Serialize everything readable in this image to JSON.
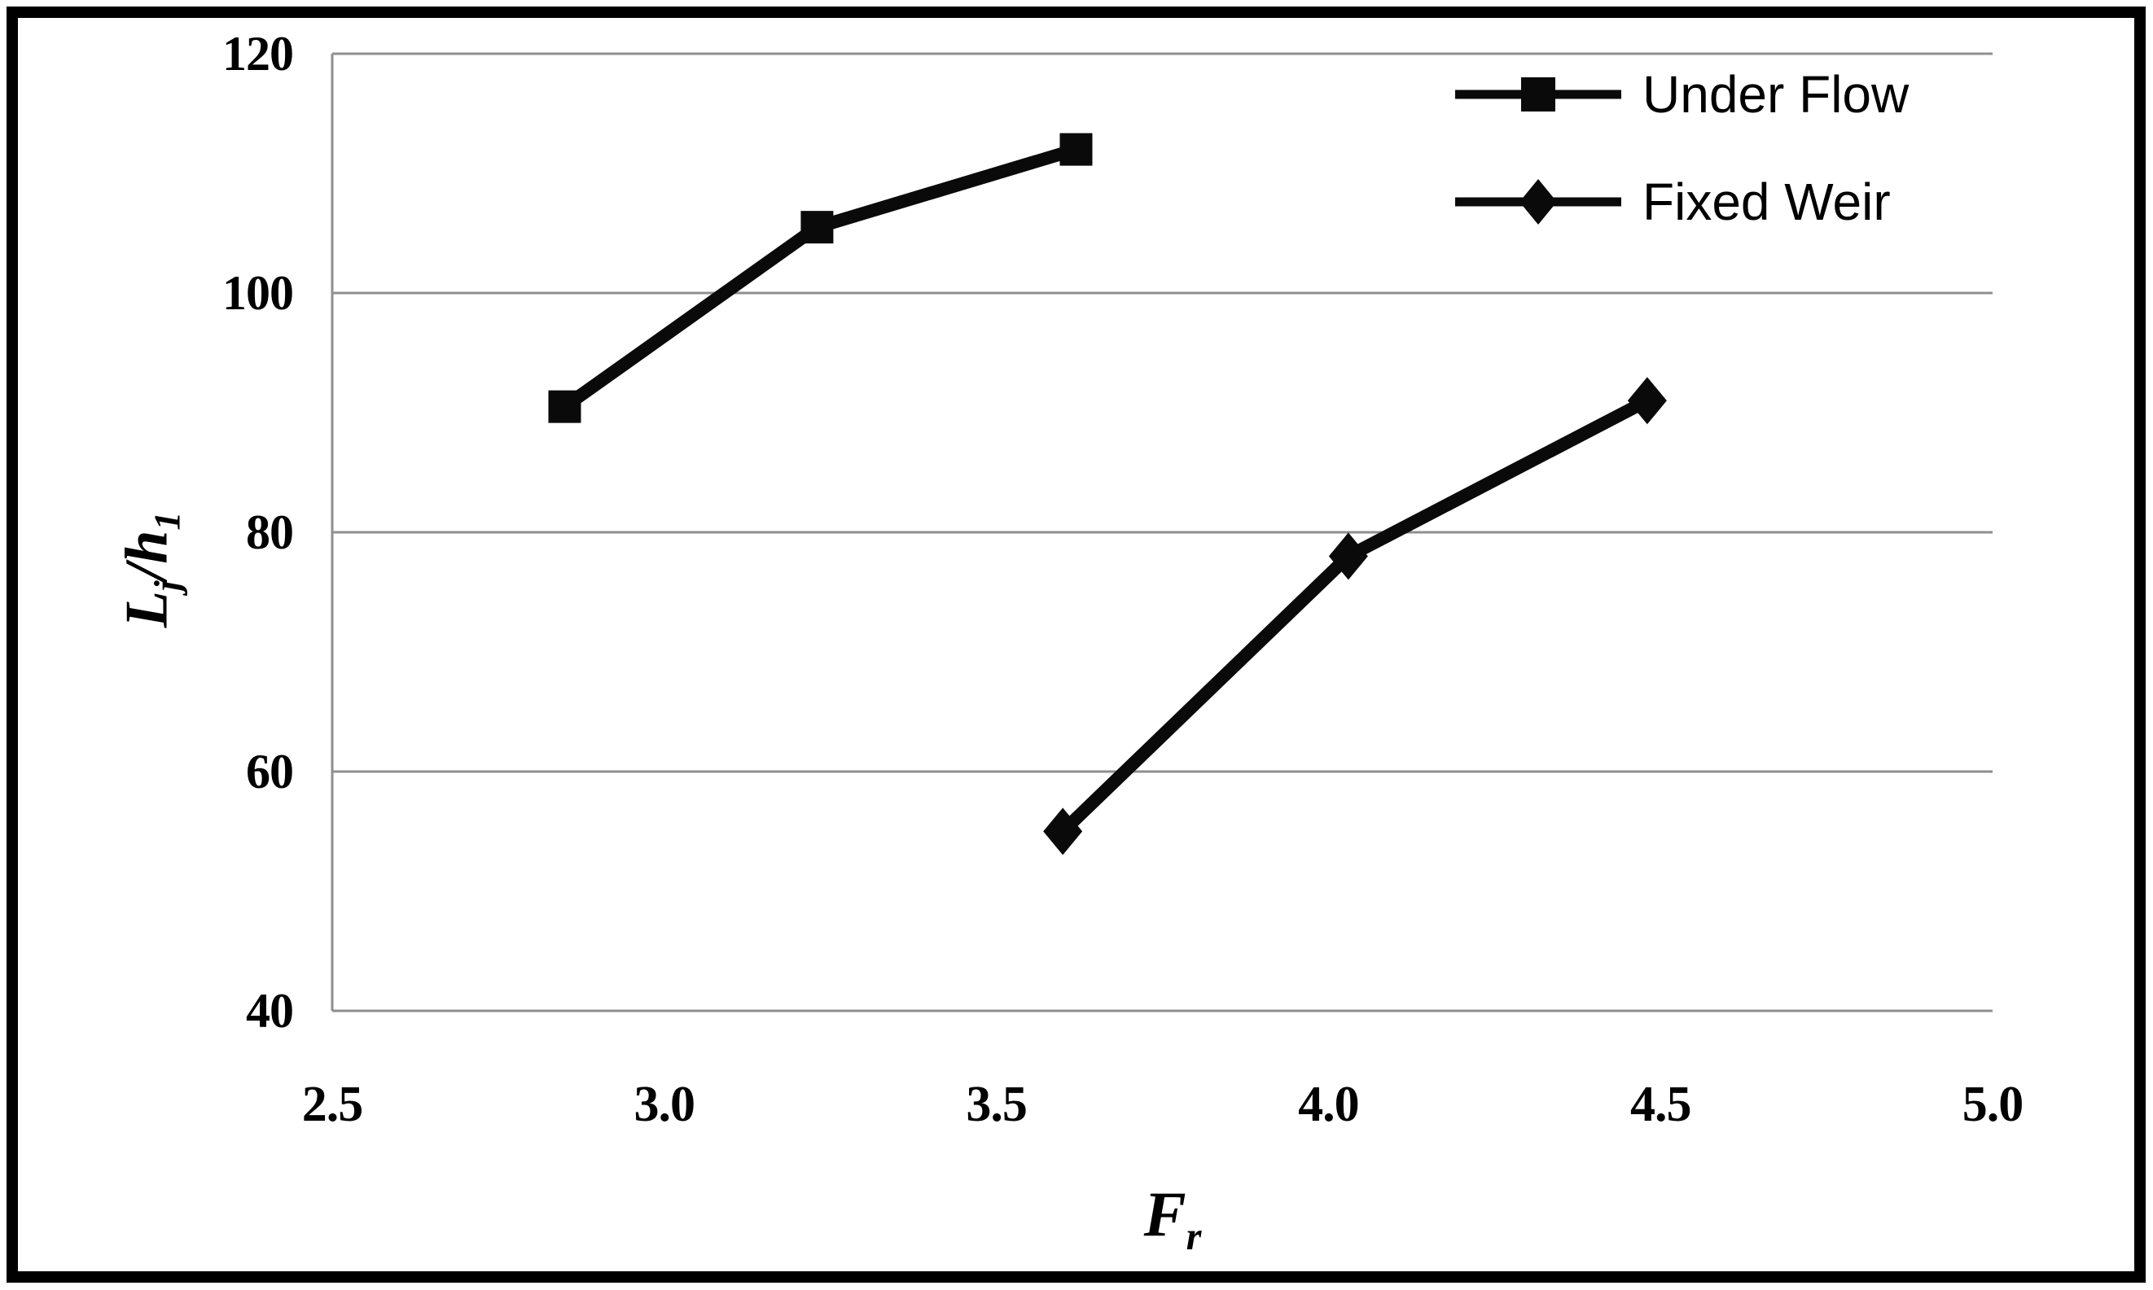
{
  "figure": {
    "background": "#ffffff",
    "frame_color": "#000000"
  },
  "chart_data": {
    "type": "line",
    "title": "",
    "xlabel": {
      "base": "F",
      "sub": "r"
    },
    "ylabel": {
      "base1": "L",
      "sub1": "j",
      "sep": "/",
      "base2": "h",
      "sub2": "1"
    },
    "xlim": [
      2.5,
      5.0
    ],
    "ylim": [
      40,
      120
    ],
    "x_ticks": [
      2.5,
      3.0,
      3.5,
      4.0,
      4.5,
      5.0
    ],
    "x_tick_labels": [
      "2.5",
      "3.0",
      "3.5",
      "4.0",
      "4.5",
      "5.0"
    ],
    "y_ticks": [
      40,
      60,
      80,
      100,
      120
    ],
    "y_tick_labels": [
      "40",
      "60",
      "80",
      "100",
      "120"
    ],
    "grid": "horizontal",
    "gridline_color": "#8f8f8f",
    "axis_color": "#8f8f8f",
    "text_color": "#000000",
    "legend_position": "top-right",
    "series": [
      {
        "name": "Under Flow",
        "marker": "square",
        "color": "#0a0a0a",
        "points": [
          [
            2.85,
            90.5
          ],
          [
            3.23,
            105.5
          ],
          [
            3.62,
            112
          ]
        ]
      },
      {
        "name": "Fixed Weir",
        "marker": "diamond",
        "color": "#0a0a0a",
        "points": [
          [
            3.6,
            55
          ],
          [
            4.03,
            78
          ],
          [
            4.48,
            91
          ]
        ]
      }
    ]
  }
}
